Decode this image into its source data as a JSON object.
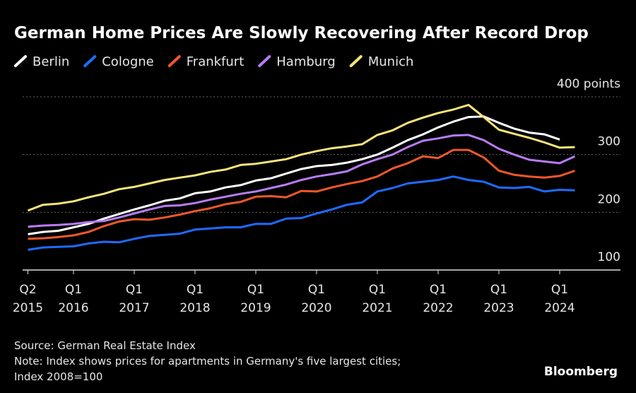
{
  "chart_data": {
    "type": "line",
    "title": "German Home Prices Are Slowly Recovering After Record Drop",
    "categories": [
      "Q2 2015",
      null,
      null,
      "Q1 2016",
      null,
      null,
      null,
      "Q1 2017",
      null,
      null,
      null,
      "Q1 2018",
      null,
      null,
      null,
      "Q1 2019",
      null,
      null,
      null,
      "Q1 2020",
      null,
      null,
      null,
      "Q1 2021",
      null,
      null,
      null,
      "Q1 2022",
      null,
      null,
      null,
      "Q1 2023",
      null,
      null,
      null,
      "Q1 2024",
      null
    ],
    "series": [
      {
        "name": "Berlin",
        "color": "#ffffff",
        "values": [
          162,
          166,
          168,
          174,
          180,
          189,
          197,
          205,
          212,
          220,
          224,
          233,
          236,
          243,
          247,
          255,
          259,
          267,
          275,
          280,
          282,
          286,
          292,
          300,
          312,
          325,
          335,
          347,
          357,
          365,
          366,
          355,
          345,
          338,
          335,
          326,
          null
        ]
      },
      {
        "name": "Cologne",
        "color": "#1f6bff",
        "values": [
          135,
          139,
          140,
          141,
          146,
          149,
          148,
          154,
          159,
          161,
          163,
          170,
          172,
          174,
          174,
          180,
          180,
          189,
          190,
          198,
          205,
          213,
          217,
          236,
          242,
          250,
          253,
          256,
          262,
          256,
          253,
          243,
          242,
          244,
          236,
          239,
          238
        ]
      },
      {
        "name": "Frankfurt",
        "color": "#f0572a",
        "values": [
          154,
          155,
          157,
          160,
          166,
          176,
          184,
          188,
          187,
          191,
          196,
          202,
          207,
          214,
          218,
          227,
          228,
          226,
          237,
          236,
          243,
          249,
          254,
          262,
          276,
          285,
          297,
          294,
          308,
          308,
          295,
          272,
          265,
          262,
          260,
          263,
          272
        ]
      },
      {
        "name": "Hamburg",
        "color": "#b77cf5",
        "values": [
          175,
          177,
          178,
          180,
          183,
          185,
          191,
          198,
          205,
          211,
          212,
          216,
          222,
          227,
          232,
          236,
          242,
          248,
          256,
          262,
          266,
          271,
          283,
          292,
          300,
          313,
          324,
          328,
          333,
          334,
          325,
          310,
          300,
          291,
          288,
          285,
          297
        ]
      },
      {
        "name": "Munich",
        "color": "#f7e479",
        "values": [
          203,
          213,
          215,
          219,
          226,
          232,
          240,
          244,
          250,
          256,
          260,
          264,
          270,
          274,
          282,
          284,
          288,
          292,
          300,
          306,
          311,
          314,
          318,
          334,
          342,
          355,
          364,
          372,
          378,
          386,
          365,
          343,
          336,
          329,
          321,
          312,
          313
        ]
      }
    ],
    "ylim": [
      100,
      400
    ],
    "yticks": [
      100,
      200,
      300,
      {
        "value": 400,
        "label": "400 points"
      }
    ],
    "grid": true,
    "source": "Source: German Real Estate Index",
    "note": [
      "Note: Index shows prices for apartments in Germany's five largest cities;",
      "Index 2008=100"
    ],
    "brand": "Bloomberg"
  }
}
